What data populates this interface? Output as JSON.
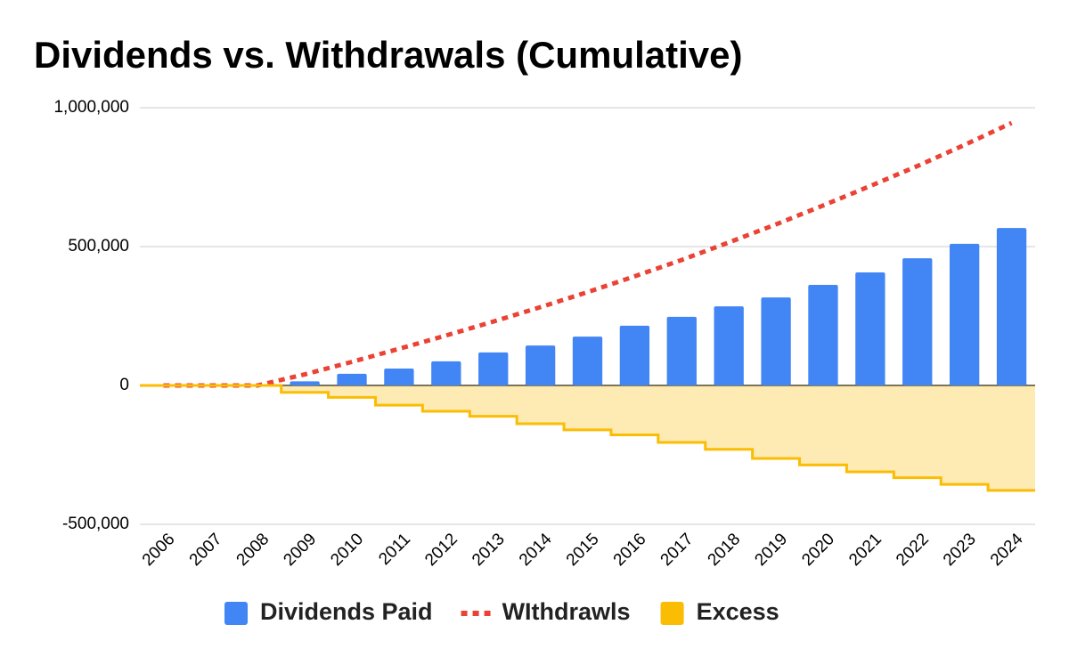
{
  "chart_data": {
    "type": "combo",
    "title": "Dividends vs. Withdrawals (Cumulative)",
    "categories": [
      "2006",
      "2007",
      "2008",
      "2009",
      "2010",
      "2011",
      "2012",
      "2013",
      "2014",
      "2015",
      "2016",
      "2017",
      "2018",
      "2019",
      "2020",
      "2021",
      "2022",
      "2023",
      "2024"
    ],
    "series": [
      {
        "name": "Dividends Paid",
        "type": "bar",
        "color": "#4285f4",
        "values": [
          0,
          0,
          0,
          15000,
          42000,
          61000,
          87000,
          119000,
          144000,
          176000,
          215000,
          247000,
          285000,
          317000,
          362000,
          407000,
          458000,
          510000,
          567000
        ]
      },
      {
        "name": "WIthdrawls",
        "type": "line",
        "line_style": "dotted",
        "color": "#ea4335",
        "values": [
          0,
          0,
          0,
          40000,
          85000,
          132000,
          180000,
          230000,
          282000,
          336000,
          393000,
          452000,
          515000,
          580000,
          648000,
          718000,
          790000,
          866000,
          945000
        ]
      },
      {
        "name": "Excess",
        "type": "area",
        "stepped": true,
        "color": "#fbbc04",
        "values": [
          0,
          0,
          0,
          -25000,
          -43000,
          -71000,
          -93000,
          -111000,
          -138000,
          -160000,
          -178000,
          -205000,
          -230000,
          -263000,
          -286000,
          -311000,
          -332000,
          -356000,
          -378000
        ]
      }
    ],
    "ylim": [
      -500000,
      1000000
    ],
    "yticks": [
      {
        "value": -500000,
        "label": "-500,000"
      },
      0,
      {
        "value": 500000,
        "label": "500,000"
      },
      {
        "value": 1000000,
        "label": "1,000,000"
      }
    ],
    "grid": true,
    "legend": "bottom"
  }
}
